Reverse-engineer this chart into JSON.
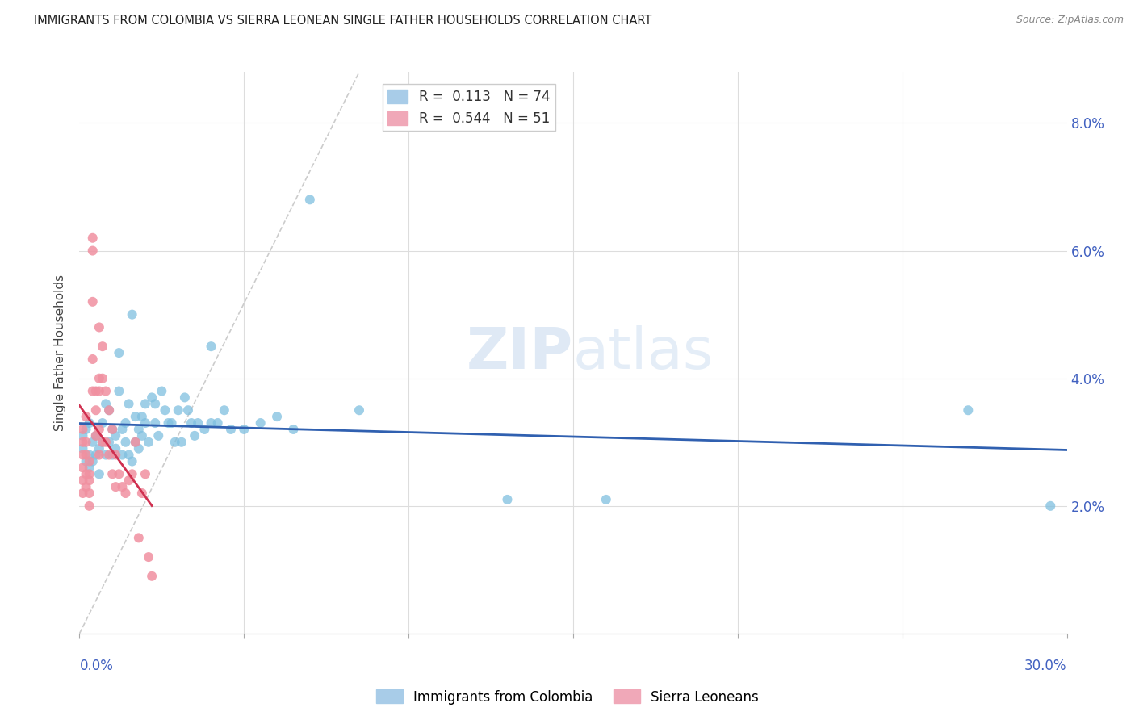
{
  "title": "IMMIGRANTS FROM COLOMBIA VS SIERRA LEONEAN SINGLE FATHER HOUSEHOLDS CORRELATION CHART",
  "source": "Source: ZipAtlas.com",
  "ylabel": "Single Father Households",
  "y_tick_vals": [
    0.02,
    0.04,
    0.06,
    0.08
  ],
  "x_range": [
    0.0,
    0.3
  ],
  "y_range": [
    0.0,
    0.088
  ],
  "colombia_color": "#7fbfdf",
  "sierraleone_color": "#f090a0",
  "colombia_line_color": "#3060b0",
  "sierraleone_line_color": "#d03050",
  "diagonal_color": "#cccccc",
  "watermark_zip": "ZIP",
  "watermark_atlas": "atlas",
  "colombia_R": 0.113,
  "colombia_N": 74,
  "sierraleone_R": 0.544,
  "sierraleone_N": 51,
  "colombia_scatter": [
    [
      0.001,
      0.029
    ],
    [
      0.001,
      0.031
    ],
    [
      0.002,
      0.027
    ],
    [
      0.002,
      0.032
    ],
    [
      0.003,
      0.026
    ],
    [
      0.003,
      0.028
    ],
    [
      0.003,
      0.033
    ],
    [
      0.004,
      0.03
    ],
    [
      0.004,
      0.027
    ],
    [
      0.005,
      0.031
    ],
    [
      0.005,
      0.028
    ],
    [
      0.006,
      0.029
    ],
    [
      0.006,
      0.025
    ],
    [
      0.007,
      0.033
    ],
    [
      0.007,
      0.03
    ],
    [
      0.008,
      0.036
    ],
    [
      0.008,
      0.028
    ],
    [
      0.009,
      0.035
    ],
    [
      0.009,
      0.03
    ],
    [
      0.01,
      0.032
    ],
    [
      0.01,
      0.028
    ],
    [
      0.011,
      0.031
    ],
    [
      0.011,
      0.029
    ],
    [
      0.012,
      0.044
    ],
    [
      0.012,
      0.038
    ],
    [
      0.013,
      0.032
    ],
    [
      0.013,
      0.028
    ],
    [
      0.014,
      0.03
    ],
    [
      0.014,
      0.033
    ],
    [
      0.015,
      0.036
    ],
    [
      0.015,
      0.028
    ],
    [
      0.016,
      0.05
    ],
    [
      0.016,
      0.027
    ],
    [
      0.017,
      0.03
    ],
    [
      0.017,
      0.034
    ],
    [
      0.018,
      0.032
    ],
    [
      0.018,
      0.029
    ],
    [
      0.019,
      0.034
    ],
    [
      0.019,
      0.031
    ],
    [
      0.02,
      0.036
    ],
    [
      0.02,
      0.033
    ],
    [
      0.021,
      0.03
    ],
    [
      0.022,
      0.037
    ],
    [
      0.023,
      0.036
    ],
    [
      0.023,
      0.033
    ],
    [
      0.024,
      0.031
    ],
    [
      0.025,
      0.038
    ],
    [
      0.026,
      0.035
    ],
    [
      0.027,
      0.033
    ],
    [
      0.028,
      0.033
    ],
    [
      0.029,
      0.03
    ],
    [
      0.03,
      0.035
    ],
    [
      0.031,
      0.03
    ],
    [
      0.032,
      0.037
    ],
    [
      0.033,
      0.035
    ],
    [
      0.034,
      0.033
    ],
    [
      0.035,
      0.031
    ],
    [
      0.036,
      0.033
    ],
    [
      0.038,
      0.032
    ],
    [
      0.04,
      0.045
    ],
    [
      0.04,
      0.033
    ],
    [
      0.042,
      0.033
    ],
    [
      0.044,
      0.035
    ],
    [
      0.046,
      0.032
    ],
    [
      0.05,
      0.032
    ],
    [
      0.055,
      0.033
    ],
    [
      0.06,
      0.034
    ],
    [
      0.065,
      0.032
    ],
    [
      0.07,
      0.068
    ],
    [
      0.085,
      0.035
    ],
    [
      0.13,
      0.021
    ],
    [
      0.16,
      0.021
    ],
    [
      0.27,
      0.035
    ],
    [
      0.295,
      0.02
    ]
  ],
  "sierraleone_scatter": [
    [
      0.001,
      0.03
    ],
    [
      0.001,
      0.028
    ],
    [
      0.001,
      0.026
    ],
    [
      0.001,
      0.032
    ],
    [
      0.001,
      0.024
    ],
    [
      0.001,
      0.022
    ],
    [
      0.002,
      0.034
    ],
    [
      0.002,
      0.03
    ],
    [
      0.002,
      0.028
    ],
    [
      0.002,
      0.025
    ],
    [
      0.002,
      0.023
    ],
    [
      0.003,
      0.027
    ],
    [
      0.003,
      0.025
    ],
    [
      0.003,
      0.022
    ],
    [
      0.003,
      0.024
    ],
    [
      0.003,
      0.02
    ],
    [
      0.004,
      0.062
    ],
    [
      0.004,
      0.06
    ],
    [
      0.004,
      0.052
    ],
    [
      0.004,
      0.043
    ],
    [
      0.004,
      0.038
    ],
    [
      0.005,
      0.038
    ],
    [
      0.005,
      0.035
    ],
    [
      0.005,
      0.031
    ],
    [
      0.006,
      0.048
    ],
    [
      0.006,
      0.04
    ],
    [
      0.006,
      0.038
    ],
    [
      0.006,
      0.032
    ],
    [
      0.006,
      0.028
    ],
    [
      0.007,
      0.045
    ],
    [
      0.007,
      0.04
    ],
    [
      0.007,
      0.03
    ],
    [
      0.008,
      0.038
    ],
    [
      0.008,
      0.03
    ],
    [
      0.009,
      0.035
    ],
    [
      0.009,
      0.028
    ],
    [
      0.01,
      0.032
    ],
    [
      0.01,
      0.025
    ],
    [
      0.011,
      0.028
    ],
    [
      0.011,
      0.023
    ],
    [
      0.012,
      0.025
    ],
    [
      0.013,
      0.023
    ],
    [
      0.014,
      0.022
    ],
    [
      0.015,
      0.024
    ],
    [
      0.016,
      0.025
    ],
    [
      0.017,
      0.03
    ],
    [
      0.018,
      0.015
    ],
    [
      0.019,
      0.022
    ],
    [
      0.02,
      0.025
    ],
    [
      0.021,
      0.012
    ],
    [
      0.022,
      0.009
    ]
  ]
}
